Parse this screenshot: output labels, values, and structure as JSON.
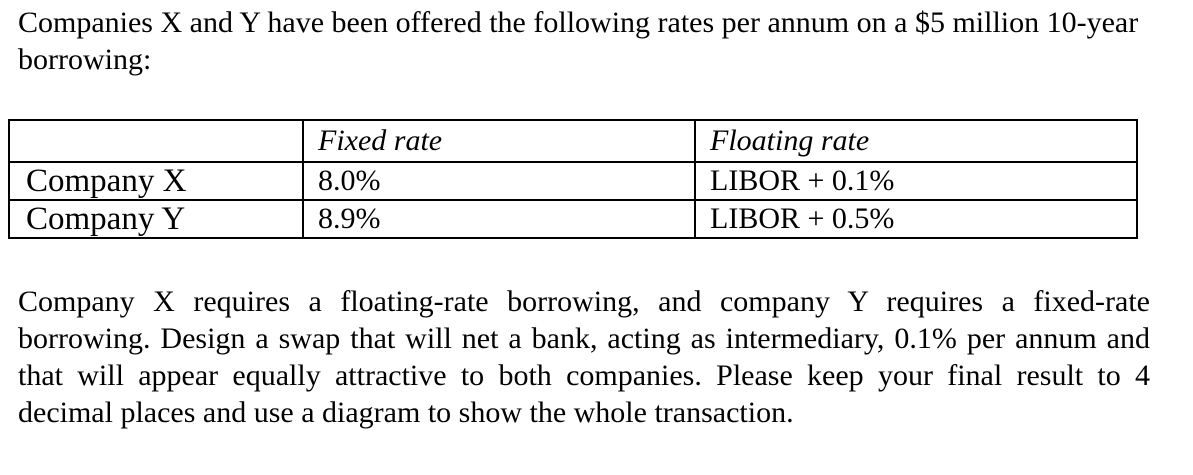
{
  "intro": {
    "text": "Companies X and Y have been offered the following rates per annum on a $5 million 10-year borrowing:"
  },
  "table": {
    "headers": [
      "",
      "Fixed rate",
      "Floating rate"
    ],
    "rows": [
      {
        "company": "Company X",
        "fixed": "8.0%",
        "floating": "LIBOR + 0.1%"
      },
      {
        "company": "Company Y",
        "fixed": "8.9%",
        "floating": "LIBOR + 0.5%"
      }
    ]
  },
  "question": {
    "text": "Company X requires a floating-rate borrowing, and company Y requires a fixed-rate borrowing. Design a swap that will net a bank, acting as intermediary, 0.1% per annum and that will appear equally attractive to both companies. Please keep your final result to 4 decimal places and use a diagram to show the whole transaction."
  }
}
